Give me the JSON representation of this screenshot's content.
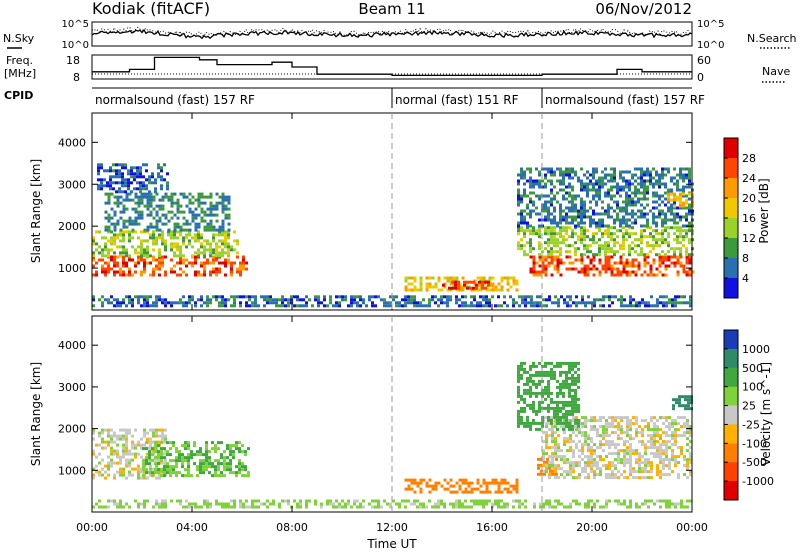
{
  "header": {
    "title": "Kodiak (fitACF)",
    "beam": "Beam 11",
    "date": "06/Nov/2012"
  },
  "top_panels": {
    "nsky_label": "N.Sky",
    "nsearch_label": "N.Search",
    "noise_ticks": [
      "10^5",
      "10^0"
    ],
    "freq_label": "Freq.",
    "freq_unit": "[MHz]",
    "freq_ticks": [
      "18",
      "8"
    ],
    "nave_label": "Nave",
    "nave_ticks": [
      "60",
      "0"
    ],
    "cpid_label": "CPID",
    "cpid_segments": [
      {
        "label": "normalsound (fast) 157 RF",
        "start_hour": 0,
        "end_hour": 12
      },
      {
        "label": "normal (fast) 151 RF",
        "start_hour": 12,
        "end_hour": 18
      },
      {
        "label": "normalsound (fast) 157 RF",
        "start_hour": 18,
        "end_hour": 24
      }
    ]
  },
  "axes": {
    "xlabel": "Time UT",
    "ylabel": "Slant Range [km]",
    "x_ticks": [
      "00:00",
      "04:00",
      "08:00",
      "12:00",
      "16:00",
      "20:00",
      "00:00"
    ],
    "x_tick_hours": [
      0,
      4,
      8,
      12,
      16,
      20,
      24
    ],
    "y_ticks": [
      "1000",
      "2000",
      "3000",
      "4000"
    ],
    "y_tick_values": [
      1000,
      2000,
      3000,
      4000
    ],
    "ylim": [
      0,
      4700
    ],
    "xlim_hours": [
      0,
      24
    ]
  },
  "chart_data": [
    {
      "type": "heatmap",
      "panel": "power",
      "xlabel": "Time UT",
      "ylabel": "Slant Range [km]",
      "colorbar_label": "Power [dB]",
      "colorbar_ticks": [
        "28",
        "24",
        "20",
        "16",
        "12",
        "8",
        "4"
      ],
      "colorbar_values": [
        28,
        24,
        20,
        16,
        12,
        8,
        4
      ],
      "colorbar_colors": [
        "#e00000",
        "#ff4500",
        "#ff9a00",
        "#f0c800",
        "#9ad22a",
        "#3c9a3c",
        "#2a6fb0",
        "#1010e0"
      ],
      "regions": [
        {
          "t0": 0.0,
          "t1": 6.2,
          "r0": 800,
          "r1": 1300,
          "power": 26
        },
        {
          "t0": 0.0,
          "t1": 5.8,
          "r0": 1300,
          "r1": 1900,
          "power": 14
        },
        {
          "t0": 0.5,
          "t1": 5.5,
          "r0": 1900,
          "r1": 2800,
          "power": 8
        },
        {
          "t0": 0.2,
          "t1": 3.0,
          "r0": 2800,
          "r1": 3500,
          "power": 5
        },
        {
          "t0": 0.0,
          "t1": 24.0,
          "r0": 100,
          "r1": 350,
          "power": 6
        },
        {
          "t0": 12.5,
          "t1": 17.0,
          "r0": 450,
          "r1": 800,
          "power": 18
        },
        {
          "t0": 14.0,
          "t1": 16.0,
          "r0": 500,
          "r1": 700,
          "power": 26
        },
        {
          "t0": 17.5,
          "t1": 24.0,
          "r0": 800,
          "r1": 1300,
          "power": 26
        },
        {
          "t0": 17.0,
          "t1": 24.0,
          "r0": 1300,
          "r1": 2000,
          "power": 14
        },
        {
          "t0": 17.0,
          "t1": 24.0,
          "r0": 2000,
          "r1": 3400,
          "power": 7
        },
        {
          "t0": 23.0,
          "t1": 24.0,
          "r0": 2500,
          "r1": 2800,
          "power": 20
        }
      ]
    },
    {
      "type": "heatmap",
      "panel": "velocity",
      "xlabel": "Time UT",
      "ylabel": "Slant Range [km]",
      "colorbar_label": "Velocity [m s^-1]",
      "colorbar_ticks": [
        "1000",
        "500",
        "100",
        "25",
        "-25",
        "-100",
        "-500",
        "-1000"
      ],
      "colorbar_values": [
        1000,
        500,
        100,
        25,
        -25,
        -100,
        -500,
        -1000
      ],
      "colorbar_colors": [
        "#1a3cb8",
        "#2f8a6a",
        "#3fa83f",
        "#7fd23a",
        "#c8c8c8",
        "#ffb000",
        "#ff8000",
        "#ff4000",
        "#e00000"
      ],
      "regions": [
        {
          "t0": 0.0,
          "t1": 3.0,
          "r0": 800,
          "r1": 2000,
          "velocity": 0
        },
        {
          "t0": 2.0,
          "t1": 6.2,
          "r0": 900,
          "r1": 1700,
          "velocity": 100
        },
        {
          "t0": 0.0,
          "t1": 24.0,
          "r0": 100,
          "r1": 300,
          "velocity": 50
        },
        {
          "t0": 12.5,
          "t1": 17.0,
          "r0": 450,
          "r1": 800,
          "velocity": -250
        },
        {
          "t0": 17.8,
          "t1": 18.6,
          "r0": 900,
          "r1": 1300,
          "velocity": -250
        },
        {
          "t0": 18.0,
          "t1": 24.0,
          "r0": 800,
          "r1": 2300,
          "velocity": 0
        },
        {
          "t0": 17.0,
          "t1": 19.5,
          "r0": 2000,
          "r1": 3600,
          "velocity": 150
        },
        {
          "t0": 23.2,
          "t1": 24.0,
          "r0": 2500,
          "r1": 2800,
          "velocity": 700
        }
      ]
    }
  ]
}
